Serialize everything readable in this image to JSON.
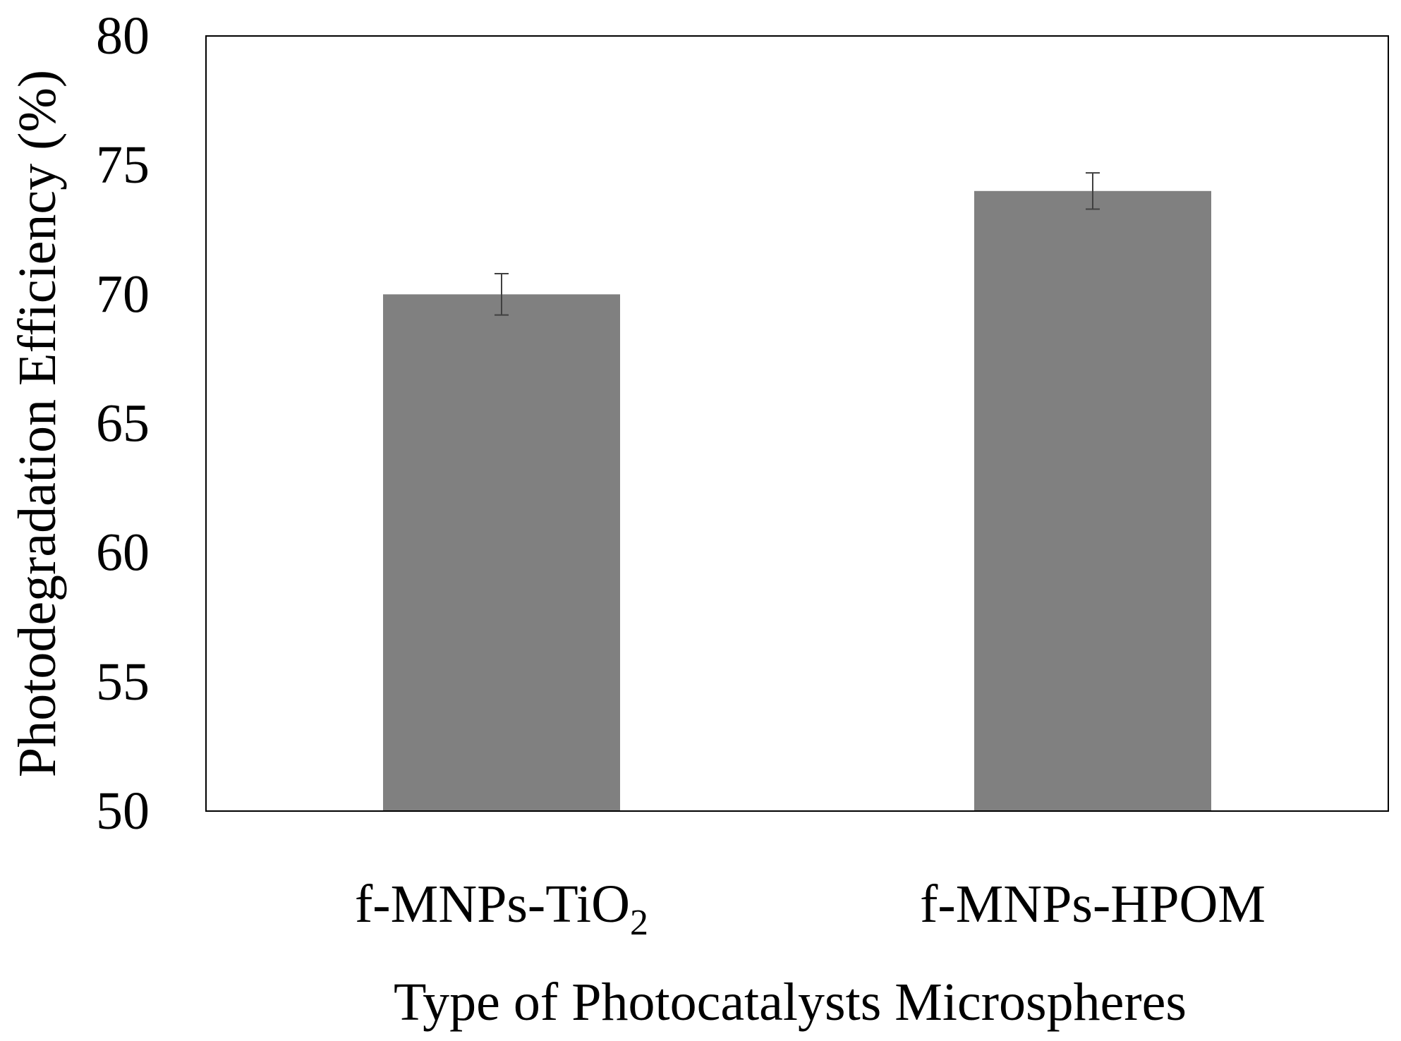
{
  "chart_data": {
    "type": "bar",
    "categories": [
      "f-MNPs-TiO",
      "f-MNPs-HPOM"
    ],
    "category_subscripts": [
      "2",
      ""
    ],
    "values": [
      70.0,
      74.0
    ],
    "errors": [
      0.8,
      0.7
    ],
    "title": "",
    "xlabel": "Type of Photocatalysts Microspheres",
    "ylabel": "Photodegradation Efficiency (%)",
    "ylim": [
      50,
      80
    ],
    "yticks": [
      50,
      55,
      60,
      65,
      70,
      75,
      80
    ],
    "grid": false,
    "bar_color": "#808080",
    "error_bar_color": "#404040",
    "frame_color": "#000000"
  }
}
